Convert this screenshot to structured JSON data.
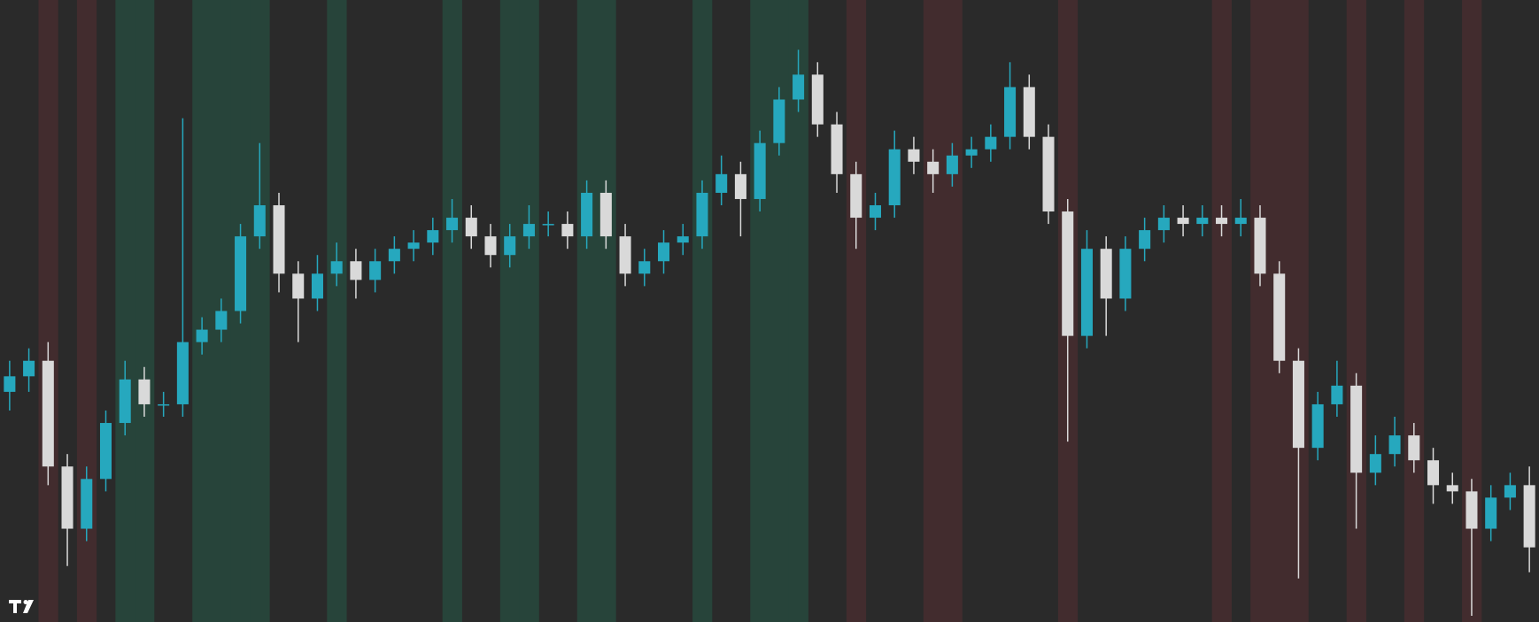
{
  "chart_data": {
    "type": "candlestick",
    "ylim": [
      0,
      100
    ],
    "background": "#2a2a2a",
    "up_color": "#26a8be",
    "down_color": "#d9d9d9",
    "regime_colors": {
      "bull": "#27443a",
      "bear": "#422c2e"
    },
    "open": [
      37,
      39.5,
      42,
      25,
      15,
      23,
      32,
      39,
      35,
      35,
      45,
      47,
      50,
      62,
      67,
      56,
      52,
      56,
      58,
      55,
      58,
      60,
      61,
      63,
      65,
      62,
      59,
      62,
      64,
      64,
      62,
      69,
      62,
      56,
      58,
      61,
      62,
      69,
      72,
      68,
      77,
      84,
      88,
      80,
      72,
      65,
      67,
      76,
      74,
      72,
      75,
      76,
      78,
      86,
      78,
      66,
      46,
      60,
      52,
      60,
      63,
      65,
      64,
      65,
      64,
      65,
      56,
      42,
      28,
      35,
      38,
      24,
      27,
      30,
      26,
      22,
      21,
      15,
      20,
      22
    ],
    "high": [
      42,
      44,
      45,
      27,
      25,
      34,
      42,
      41,
      37,
      81,
      49,
      52,
      64,
      77,
      69,
      58,
      59,
      61,
      60,
      60,
      62,
      63,
      65,
      68,
      67,
      64,
      64,
      67,
      66,
      66,
      71,
      71,
      64,
      60,
      63,
      64,
      71,
      75,
      74,
      79,
      86,
      92,
      90,
      82,
      74,
      69,
      79,
      78,
      76,
      77,
      78,
      80,
      90,
      88,
      80,
      68,
      63,
      62,
      62,
      65,
      67,
      67,
      67,
      67,
      68,
      67,
      58,
      44,
      37,
      42,
      40,
      30,
      33,
      32,
      28,
      24,
      23,
      22,
      24,
      25
    ],
    "low": [
      34,
      37,
      22,
      9,
      13,
      21,
      30,
      33,
      33,
      33,
      43,
      45,
      48,
      60,
      53,
      45,
      50,
      54,
      52,
      53,
      56,
      58,
      59,
      61,
      60,
      57,
      57,
      60,
      62,
      60,
      60,
      60,
      54,
      54,
      56,
      59,
      60,
      67,
      62,
      66,
      75,
      82,
      78,
      69,
      60,
      63,
      65,
      72,
      69,
      70,
      73,
      74,
      76,
      76,
      64,
      29,
      44,
      46,
      50,
      58,
      61,
      62,
      62,
      62,
      62,
      54,
      40,
      7,
      26,
      33,
      15,
      22,
      25,
      24,
      19,
      19,
      1,
      13,
      18,
      8
    ],
    "close": [
      39.5,
      42,
      25,
      15,
      23,
      32,
      39,
      35,
      35,
      45,
      47,
      50,
      62,
      67,
      56,
      52,
      56,
      58,
      55,
      58,
      60,
      61,
      63,
      65,
      62,
      59,
      62,
      64,
      64,
      62,
      69,
      62,
      56,
      58,
      61,
      62,
      69,
      72,
      68,
      77,
      84,
      88,
      80,
      72,
      65,
      67,
      76,
      74,
      72,
      75,
      76,
      78,
      86,
      78,
      66,
      46,
      60,
      52,
      60,
      63,
      65,
      64,
      65,
      64,
      65,
      56,
      42,
      28,
      35,
      38,
      24,
      27,
      30,
      26,
      22,
      21,
      15,
      20,
      22,
      12
    ],
    "regimes": [
      null,
      null,
      "bear",
      null,
      "bear",
      null,
      "bull",
      "bull",
      null,
      null,
      "bull",
      "bull",
      "bull",
      "bull",
      null,
      null,
      null,
      "bull",
      null,
      null,
      null,
      null,
      null,
      "bull",
      null,
      null,
      "bull",
      "bull",
      null,
      null,
      "bull",
      "bull",
      null,
      null,
      null,
      null,
      "bull",
      null,
      null,
      "bull",
      "bull",
      "bull",
      null,
      null,
      "bear",
      null,
      null,
      null,
      "bear",
      "bear",
      null,
      null,
      null,
      null,
      null,
      "bear",
      null,
      null,
      null,
      null,
      null,
      null,
      null,
      "bear",
      null,
      "bear",
      "bear",
      "bear",
      null,
      null,
      "bear",
      null,
      null,
      "bear",
      null,
      null,
      "bear",
      null,
      null,
      null
    ]
  }
}
